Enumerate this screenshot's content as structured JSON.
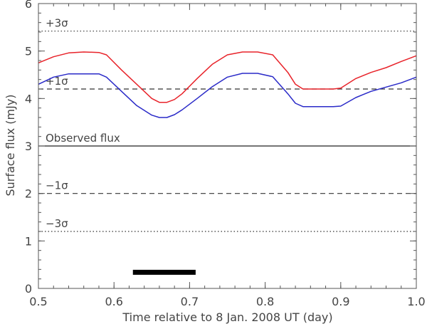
{
  "chart_data": {
    "type": "line",
    "title": "",
    "xlabel": "Time relative to 8 Jan. 2008 UT (day)",
    "ylabel": "Surface flux (mJy)",
    "xlim": [
      0.5,
      1.0
    ],
    "ylim": [
      0,
      6
    ],
    "xticks": [
      0.5,
      0.6,
      0.7,
      0.8,
      0.9,
      1.0
    ],
    "xtick_labels": [
      "0.5",
      "0.6",
      "0.7",
      "0.8",
      "0.9",
      "1.0"
    ],
    "yticks": [
      0,
      1,
      2,
      3,
      4,
      5,
      6
    ],
    "ytick_labels": [
      "0",
      "1",
      "2",
      "3",
      "4",
      "5",
      "6"
    ],
    "grid": false,
    "reference_lines": [
      {
        "label": "+3σ",
        "y": 5.42,
        "style": "dotted",
        "color": "#333333"
      },
      {
        "label": "+1σ",
        "y": 4.2,
        "style": "dashed",
        "color": "#333333"
      },
      {
        "label": "Observed flux",
        "y": 3.0,
        "style": "solid",
        "color": "#222222"
      },
      {
        "label": "−1σ",
        "y": 2.0,
        "style": "dashed",
        "color": "#333333"
      },
      {
        "label": "−3σ",
        "y": 1.2,
        "style": "dotted",
        "color": "#333333"
      }
    ],
    "series": [
      {
        "color": "#e8232a",
        "x": [
          0.5,
          0.52,
          0.54,
          0.56,
          0.58,
          0.59,
          0.61,
          0.63,
          0.65,
          0.66,
          0.67,
          0.68,
          0.69,
          0.71,
          0.73,
          0.75,
          0.77,
          0.79,
          0.81,
          0.83,
          0.84,
          0.85,
          0.87,
          0.89,
          0.9,
          0.92,
          0.94,
          0.96,
          0.98,
          1.0
        ],
        "y": [
          4.75,
          4.88,
          4.96,
          4.98,
          4.97,
          4.92,
          4.6,
          4.3,
          4.0,
          3.92,
          3.92,
          3.98,
          4.1,
          4.42,
          4.72,
          4.92,
          4.98,
          4.98,
          4.92,
          4.55,
          4.3,
          4.2,
          4.2,
          4.2,
          4.22,
          4.42,
          4.55,
          4.65,
          4.78,
          4.9
        ]
      },
      {
        "color": "#2a2ac8",
        "x": [
          0.5,
          0.52,
          0.54,
          0.56,
          0.58,
          0.59,
          0.61,
          0.63,
          0.65,
          0.66,
          0.67,
          0.68,
          0.69,
          0.71,
          0.73,
          0.75,
          0.77,
          0.79,
          0.81,
          0.83,
          0.84,
          0.85,
          0.87,
          0.89,
          0.9,
          0.92,
          0.94,
          0.96,
          0.98,
          1.0
        ],
        "y": [
          4.3,
          4.45,
          4.52,
          4.52,
          4.52,
          4.45,
          4.15,
          3.85,
          3.65,
          3.6,
          3.6,
          3.66,
          3.76,
          4.0,
          4.25,
          4.45,
          4.53,
          4.53,
          4.46,
          4.1,
          3.9,
          3.83,
          3.83,
          3.83,
          3.84,
          4.02,
          4.15,
          4.24,
          4.33,
          4.45
        ]
      }
    ],
    "bar_marker": {
      "x_start": 0.625,
      "x_end": 0.708,
      "y": 0.34,
      "color": "#000000"
    }
  }
}
